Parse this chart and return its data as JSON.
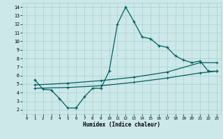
{
  "xlabel": "Humidex (Indice chaleur)",
  "xlim": [
    -0.5,
    23.5
  ],
  "ylim": [
    1.5,
    14.5
  ],
  "xticks": [
    0,
    1,
    2,
    3,
    4,
    5,
    6,
    7,
    8,
    9,
    10,
    11,
    12,
    13,
    14,
    15,
    16,
    17,
    18,
    19,
    20,
    21,
    22,
    23
  ],
  "yticks": [
    2,
    3,
    4,
    5,
    6,
    7,
    8,
    9,
    10,
    11,
    12,
    13,
    14
  ],
  "bg_color": "#cce8e8",
  "line_color": "#006060",
  "grid_color": "#a8d0d0",
  "curve_x": [
    1,
    2,
    3,
    4,
    5,
    6,
    6,
    7,
    8,
    9,
    10,
    11,
    12,
    13,
    14,
    15,
    16,
    17,
    18,
    19,
    20,
    21,
    22,
    23
  ],
  "curve_y": [
    5.5,
    4.4,
    4.3,
    3.3,
    2.2,
    2.2,
    2.2,
    3.5,
    4.5,
    4.5,
    6.5,
    12.0,
    14.0,
    12.3,
    10.5,
    10.3,
    9.5,
    9.3,
    8.3,
    7.8,
    7.5,
    7.7,
    6.5,
    6.5
  ],
  "line1_x": [
    1,
    5,
    9,
    13,
    17,
    21,
    23
  ],
  "line1_y": [
    4.5,
    4.6,
    4.8,
    5.2,
    5.7,
    6.3,
    6.5
  ],
  "line2_x": [
    1,
    5,
    9,
    13,
    17,
    21,
    23
  ],
  "line2_y": [
    4.9,
    5.1,
    5.4,
    5.8,
    6.4,
    7.5,
    7.5
  ]
}
